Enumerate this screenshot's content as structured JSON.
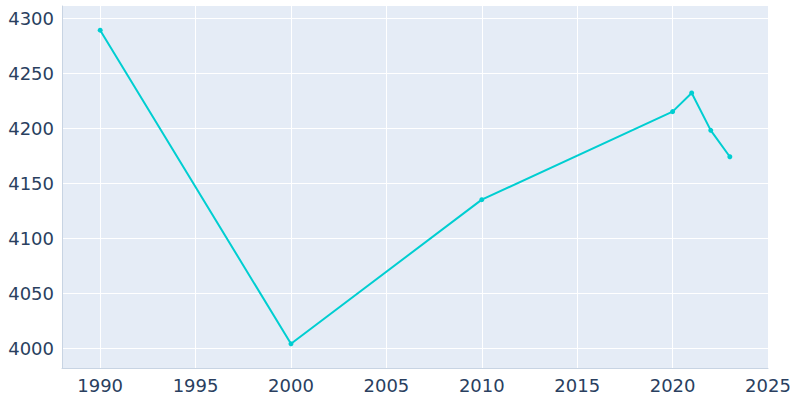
{
  "chart_data": {
    "type": "line",
    "x": [
      1990,
      2000,
      2010,
      2020,
      2021,
      2022,
      2023
    ],
    "values": [
      4289,
      4004,
      4135,
      4215,
      4232,
      4198,
      4174
    ],
    "color": "#00ced1",
    "marker": "circle",
    "xlim": [
      1988,
      2025
    ],
    "xticks": [
      1990,
      1995,
      2000,
      2005,
      2010,
      2015,
      2020,
      2025
    ],
    "ylim": [
      3982,
      4311
    ],
    "yticks": [
      4000,
      4050,
      4100,
      4150,
      4200,
      4250,
      4300
    ],
    "grid": true
  }
}
